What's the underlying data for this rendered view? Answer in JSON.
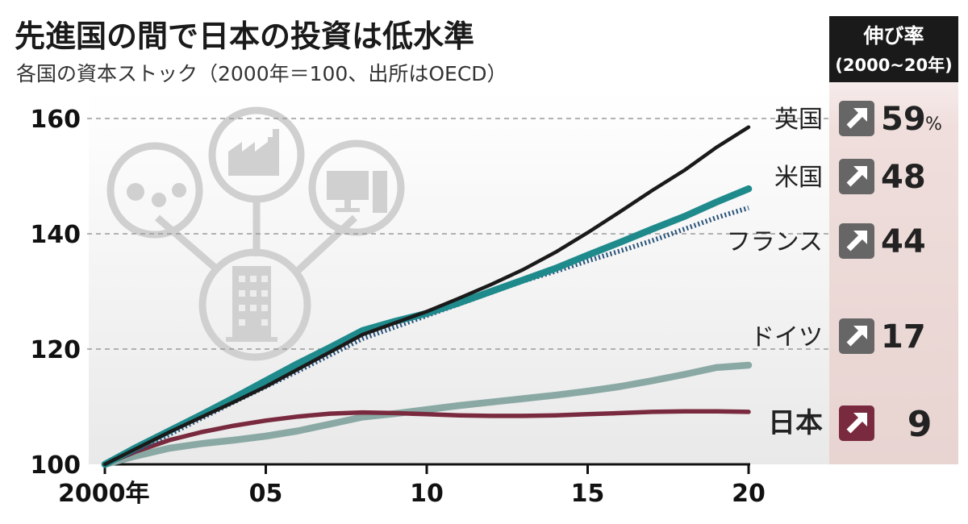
{
  "colors": {
    "uk": "#1a1a1a",
    "us": "#1f8a8c",
    "france": "#27527a",
    "germany": "#8aa9a4",
    "japan": "#7a2a3e",
    "panel": "#ecdcd9",
    "header_bg": "#1a1a1a",
    "icon_gray": "#d0d0d0"
  },
  "chart_data": {
    "type": "line",
    "title": "先進国の間で日本の投資は低水準",
    "subtitle": "各国の資本ストック（2000年＝100、出所はOECD）",
    "x": [
      2000,
      2001,
      2002,
      2003,
      2004,
      2005,
      2006,
      2007,
      2008,
      2009,
      2010,
      2011,
      2012,
      2013,
      2014,
      2015,
      2016,
      2017,
      2018,
      2019,
      2020
    ],
    "x_tick_values": [
      2000,
      2005,
      2010,
      2015,
      2020
    ],
    "x_tick_labels": [
      "2000年",
      "05",
      "10",
      "15",
      "20"
    ],
    "ylim": [
      100,
      160
    ],
    "y_ticks": [
      100,
      120,
      140,
      160
    ],
    "grid": "dashed horizontal at 120, 140, 160",
    "series": [
      {
        "name": "英国",
        "key": "uk",
        "style": "solid-thin",
        "growth": "59",
        "unit": "%",
        "values": [
          100,
          102.8,
          105.6,
          108.2,
          110.8,
          113.5,
          116.5,
          119.5,
          122.5,
          124.5,
          126.5,
          128.8,
          131.2,
          133.8,
          136.8,
          140.2,
          143.8,
          147.5,
          151.0,
          155.0,
          158.5
        ]
      },
      {
        "name": "米国",
        "key": "us",
        "style": "solid-thick",
        "growth": "48",
        "unit": "",
        "values": [
          100,
          103.0,
          105.8,
          108.6,
          111.5,
          114.5,
          117.5,
          120.3,
          123.2,
          124.8,
          126.2,
          128.0,
          130.0,
          132.0,
          134.0,
          136.3,
          138.5,
          140.8,
          143.0,
          145.5,
          147.8
        ]
      },
      {
        "name": "フランス",
        "key": "france",
        "style": "dotted",
        "growth": "44",
        "unit": "",
        "values": [
          100,
          102.5,
          105.2,
          108.0,
          110.8,
          113.5,
          116.2,
          119.0,
          121.8,
          123.8,
          125.8,
          127.8,
          129.8,
          131.8,
          133.5,
          135.3,
          137.0,
          138.8,
          140.8,
          142.8,
          144.5
        ]
      },
      {
        "name": "ドイツ",
        "key": "germany",
        "style": "solid-thick",
        "growth": "17",
        "unit": "",
        "values": [
          100,
          101.5,
          102.8,
          103.6,
          104.2,
          104.9,
          105.8,
          107.0,
          108.2,
          108.8,
          109.5,
          110.2,
          110.8,
          111.4,
          112.0,
          112.7,
          113.5,
          114.5,
          115.6,
          116.8,
          117.2
        ]
      },
      {
        "name": "日本",
        "key": "japan",
        "style": "solid-medium",
        "growth": "9",
        "unit": "",
        "values": [
          100,
          102.3,
          104.2,
          105.6,
          106.7,
          107.6,
          108.3,
          108.8,
          109.0,
          108.9,
          108.7,
          108.5,
          108.4,
          108.4,
          108.5,
          108.7,
          108.9,
          109.1,
          109.2,
          109.2,
          109.1
        ]
      }
    ],
    "growth_panel": {
      "header": "伸び率",
      "header_sub": "(2000~20年)"
    }
  }
}
